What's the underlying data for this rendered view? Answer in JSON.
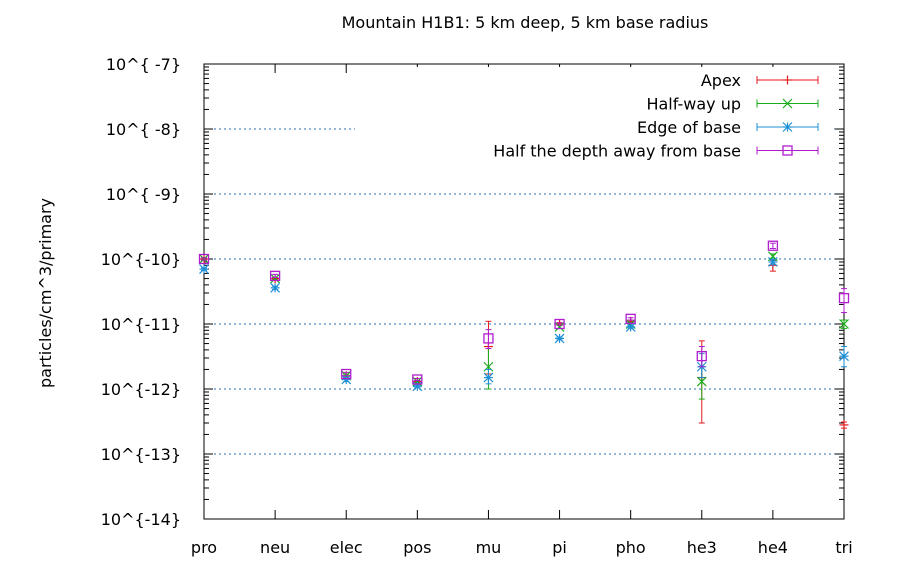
{
  "chart_data": {
    "type": "scatter",
    "title": "Mountain H1B1: 5 km deep, 5 km base radius",
    "xlabel": "",
    "ylabel": "particles/cm^3/primary",
    "y_scale": "log",
    "y_range": [
      1e-14,
      1e-07
    ],
    "grid": "horizontal dotted at major ticks",
    "legend_position": "top-right",
    "categories": [
      "pro",
      "neu",
      "elec",
      "pos",
      "mu",
      "pi",
      "pho",
      "he3",
      "he4",
      "tri"
    ],
    "y_tick_labels": [
      "10^{ -7}",
      "10^{ -8}",
      "10^{ -9}",
      "10^{-10}",
      "10^{-11}",
      "10^{-12}",
      "10^{-13}",
      "10^{-14}"
    ],
    "series": [
      {
        "name": "Apex",
        "color": "#e41a1c",
        "marker": "plus",
        "points": [
          {
            "x": "pro",
            "y": 1e-10,
            "err": [
              9.5e-11,
              1.05e-10
            ]
          },
          {
            "x": "neu",
            "y": 5e-11,
            "err": [
              4.8e-11,
              5.2e-11
            ]
          },
          {
            "x": "elec",
            "y": 1.6e-12,
            "err": [
              1.5e-12,
              1.7e-12
            ]
          },
          {
            "x": "pos",
            "y": 1.3e-12,
            "err": [
              1.25e-12,
              1.35e-12
            ]
          },
          {
            "x": "mu",
            "y": 4.5e-12,
            "err": [
              1.7e-12,
              1.1e-11
            ]
          },
          {
            "x": "pi",
            "y": 1e-11,
            "err": [
              9.5e-12,
              1.05e-11
            ]
          },
          {
            "x": "pho",
            "y": 1.1e-11,
            "err": [
              1.05e-11,
              1.15e-11
            ]
          },
          {
            "x": "he3",
            "y": 1.5e-12,
            "err": [
              3e-13,
              5.5e-12
            ]
          },
          {
            "x": "he4",
            "y": 8e-11,
            "err": [
              6.5e-11,
              9.5e-11
            ]
          },
          {
            "x": "tri",
            "y": 2.8e-13,
            "err": [
              2.5e-13,
              3.1e-13
            ]
          }
        ]
      },
      {
        "name": "Half-way up",
        "color": "#1aad1a",
        "marker": "cross",
        "points": [
          {
            "x": "pro",
            "y": 1e-10,
            "err": [
              9.5e-11,
              1.05e-10
            ]
          },
          {
            "x": "neu",
            "y": 5e-11,
            "err": [
              4.8e-11,
              5.2e-11
            ]
          },
          {
            "x": "elec",
            "y": 1.6e-12,
            "err": [
              1.5e-12,
              1.7e-12
            ]
          },
          {
            "x": "pos",
            "y": 1.3e-12,
            "err": [
              1.25e-12,
              1.35e-12
            ]
          },
          {
            "x": "mu",
            "y": 2.2e-12,
            "err": [
              1e-12,
              4.2e-12
            ]
          },
          {
            "x": "pi",
            "y": 9e-12,
            "err": [
              8.5e-12,
              9.5e-12
            ]
          },
          {
            "x": "pho",
            "y": 1e-11,
            "err": [
              9.5e-12,
              1.05e-11
            ]
          },
          {
            "x": "he3",
            "y": 1.3e-12,
            "err": [
              7e-13,
              2.2e-12
            ]
          },
          {
            "x": "he4",
            "y": 1.1e-10,
            "err": [
              1e-10,
              1.2e-10
            ]
          },
          {
            "x": "tri",
            "y": 1e-11,
            "err": [
              8.5e-12,
              1.15e-11
            ]
          }
        ]
      },
      {
        "name": "Edge of base",
        "color": "#1f8fd6",
        "marker": "star",
        "points": [
          {
            "x": "pro",
            "y": 7e-11,
            "err": [
              6.7e-11,
              7.3e-11
            ]
          },
          {
            "x": "neu",
            "y": 3.6e-11,
            "err": [
              3.4e-11,
              3.8e-11
            ]
          },
          {
            "x": "elec",
            "y": 1.4e-12,
            "err": [
              1.3e-12,
              1.5e-12
            ]
          },
          {
            "x": "pos",
            "y": 1.1e-12,
            "err": [
              1.05e-12,
              1.15e-12
            ]
          },
          {
            "x": "mu",
            "y": 1.5e-12,
            "err": [
              1.2e-12,
              2e-12
            ]
          },
          {
            "x": "pi",
            "y": 6e-12,
            "err": [
              5.7e-12,
              6.3e-12
            ]
          },
          {
            "x": "pho",
            "y": 9e-12,
            "err": [
              8.6e-12,
              9.4e-12
            ]
          },
          {
            "x": "he3",
            "y": 2.2e-12,
            "err": [
              1.5e-12,
              3.5e-12
            ]
          },
          {
            "x": "he4",
            "y": 9e-11,
            "err": [
              8.3e-11,
              9.7e-11
            ]
          },
          {
            "x": "tri",
            "y": 3.2e-12,
            "err": [
              2.2e-12,
              4.5e-12
            ]
          }
        ]
      },
      {
        "name": "Half the depth away from base",
        "color": "#b01cd0",
        "marker": "square",
        "points": [
          {
            "x": "pro",
            "y": 1e-10,
            "err": [
              9.6e-11,
              1.04e-10
            ]
          },
          {
            "x": "neu",
            "y": 5.5e-11,
            "err": [
              5.2e-11,
              5.8e-11
            ]
          },
          {
            "x": "elec",
            "y": 1.7e-12,
            "err": [
              1.6e-12,
              1.8e-12
            ]
          },
          {
            "x": "pos",
            "y": 1.4e-12,
            "err": [
              1.35e-12,
              1.45e-12
            ]
          },
          {
            "x": "mu",
            "y": 6e-12,
            "err": [
              4.2e-12,
              8.2e-12
            ]
          },
          {
            "x": "pi",
            "y": 1e-11,
            "err": [
              9.6e-12,
              1.04e-11
            ]
          },
          {
            "x": "pho",
            "y": 1.2e-11,
            "err": [
              1.15e-11,
              1.25e-11
            ]
          },
          {
            "x": "he3",
            "y": 3.2e-12,
            "err": [
              2.2e-12,
              4.5e-12
            ]
          },
          {
            "x": "he4",
            "y": 1.6e-10,
            "err": [
              1.45e-10,
              1.75e-10
            ]
          },
          {
            "x": "tri",
            "y": 2.5e-11,
            "err": [
              1.5e-11,
              3.5e-11
            ]
          }
        ]
      }
    ]
  }
}
